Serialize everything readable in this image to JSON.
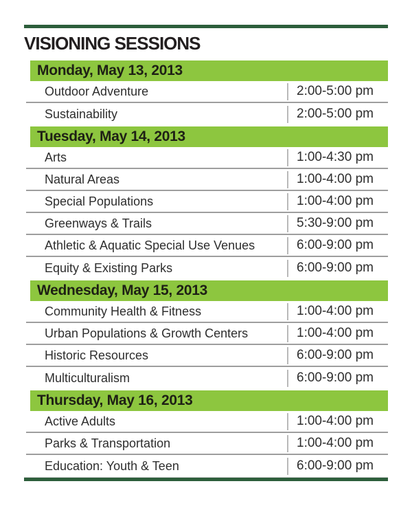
{
  "page": {
    "title": "VISIONING SESSIONS"
  },
  "colors": {
    "accent_green": "#8DC63F",
    "dark_green": "#2D5E3B",
    "text_dark": "#231F20",
    "row_text": "#2E2E2E",
    "separator_gray": "#9E9E9E",
    "divider_gray": "#B9B9B9"
  },
  "sections": [
    {
      "header": "Monday, May 13, 2013",
      "rows": [
        {
          "title": "Outdoor Adventure",
          "time": "2:00-5:00 pm"
        },
        {
          "title": "Sustainability",
          "time": "2:00-5:00 pm"
        }
      ]
    },
    {
      "header": "Tuesday, May 14, 2013",
      "rows": [
        {
          "title": "Arts",
          "time": "1:00-4:30 pm"
        },
        {
          "title": "Natural Areas",
          "time": "1:00-4:00 pm"
        },
        {
          "title": "Special Populations",
          "time": "1:00-4:00 pm"
        },
        {
          "title": "Greenways & Trails",
          "time": "5:30-9:00 pm"
        },
        {
          "title": "Athletic & Aquatic Special Use Venues",
          "time": "6:00-9:00 pm"
        },
        {
          "title": "Equity & Existing Parks",
          "time": "6:00-9:00 pm"
        }
      ]
    },
    {
      "header": "Wednesday, May 15, 2013",
      "rows": [
        {
          "title": "Community Health & Fitness",
          "time": "1:00-4:00 pm"
        },
        {
          "title": "Urban Populations & Growth Centers",
          "time": "1:00-4:00 pm"
        },
        {
          "title": "Historic Resources",
          "time": "6:00-9:00 pm"
        },
        {
          "title": "Multiculturalism",
          "time": "6:00-9:00 pm"
        }
      ]
    },
    {
      "header": "Thursday, May 16, 2013",
      "rows": [
        {
          "title": "Active Adults",
          "time": "1:00-4:00 pm"
        },
        {
          "title": "Parks & Transportation",
          "time": "1:00-4:00 pm"
        },
        {
          "title": "Education: Youth & Teen",
          "time": "6:00-9:00 pm"
        }
      ]
    }
  ]
}
